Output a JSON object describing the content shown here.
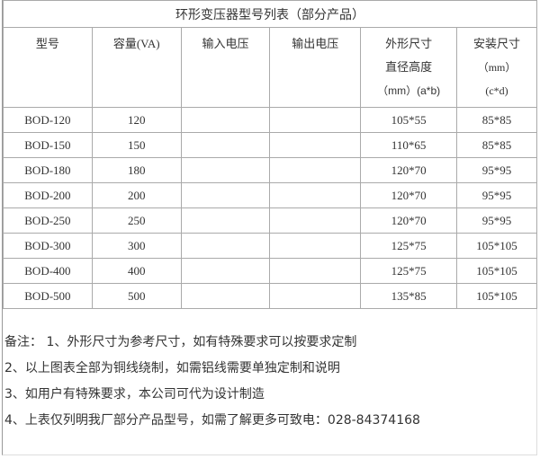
{
  "title": "环形变压器型号列表（部分产品）",
  "headers": [
    "型号",
    "容量(VA)",
    "输入电压",
    "输出电压",
    "外形尺寸",
    "安装尺寸"
  ],
  "header_sub": {
    "outer_line2": "直径高度",
    "outer_line3": "（mm）(a*b)",
    "mount_line2": "（mm）",
    "mount_line3": "(c*d)"
  },
  "rows": [
    [
      "BOD-120",
      "120",
      "",
      "",
      "105*55",
      "85*85"
    ],
    [
      "BOD-150",
      "150",
      "",
      "",
      "110*65",
      "85*85"
    ],
    [
      "BOD-180",
      "180",
      "",
      "",
      "120*70",
      "95*95"
    ],
    [
      "BOD-200",
      "200",
      "",
      "",
      "120*70",
      "95*95"
    ],
    [
      "BOD-250",
      "250",
      "",
      "",
      "120*70",
      "95*95"
    ],
    [
      "BOD-300",
      "300",
      "",
      "",
      "125*75",
      "105*105"
    ],
    [
      "BOD-400",
      "400",
      "",
      "",
      "125*75",
      "105*105"
    ],
    [
      "BOD-500",
      "500",
      "",
      "",
      "135*85",
      "105*105"
    ]
  ],
  "notes": [
    "备注： 1、外形尺寸为参考尺寸，如有特殊要求可以按要求定制",
    "2、以上图表全部为铜线绕制，如需铝线需要单独定制和说明",
    "3、如用户有特殊要求，本公司可代为设计制造",
    "4、上表仅列明我厂部分产品型号，如需了解更多可致电：028-84374168"
  ]
}
